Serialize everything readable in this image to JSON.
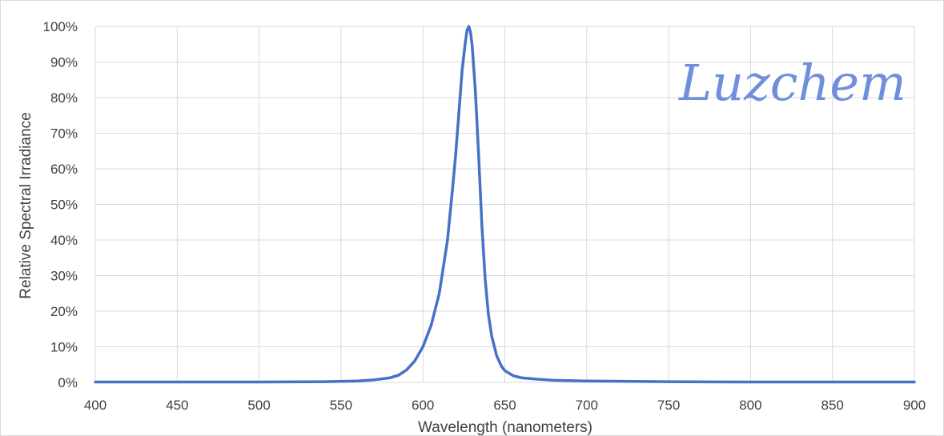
{
  "chart_data": {
    "type": "line",
    "title": "",
    "xlabel": "Wavelength (nanometers)",
    "ylabel": "Relative Spectral Irradiance",
    "xlim": [
      400,
      900
    ],
    "ylim": [
      0,
      100
    ],
    "x_ticks": [
      "400",
      "450",
      "500",
      "550",
      "600",
      "650",
      "700",
      "750",
      "800",
      "850",
      "900"
    ],
    "y_ticks": [
      "0%",
      "10%",
      "20%",
      "30%",
      "40%",
      "50%",
      "60%",
      "70%",
      "80%",
      "90%",
      "100%"
    ],
    "grid": true,
    "legend": "none",
    "line_color": "#4472c4",
    "series": [
      {
        "x": [
          400,
          450,
          500,
          540,
          560,
          570,
          580,
          585,
          590,
          595,
          600,
          605,
          610,
          615,
          618,
          620,
          622,
          624,
          626,
          627,
          628,
          629,
          630,
          632,
          634,
          636,
          638,
          640,
          642,
          645,
          648,
          650,
          655,
          660,
          670,
          680,
          700,
          750,
          800,
          850,
          900
        ],
        "values": [
          0.1,
          0.1,
          0.1,
          0.2,
          0.4,
          0.7,
          1.3,
          2.0,
          3.5,
          6,
          10,
          16,
          25,
          40,
          54,
          64,
          76,
          88,
          96,
          99,
          100,
          98.5,
          95,
          82,
          64,
          44,
          29,
          19,
          13,
          7.5,
          4.5,
          3.3,
          1.9,
          1.3,
          0.9,
          0.6,
          0.4,
          0.2,
          0.1,
          0.1,
          0.1
        ]
      }
    ]
  },
  "watermark": {
    "text": "Luzchem",
    "color": "#6f8fdd"
  }
}
